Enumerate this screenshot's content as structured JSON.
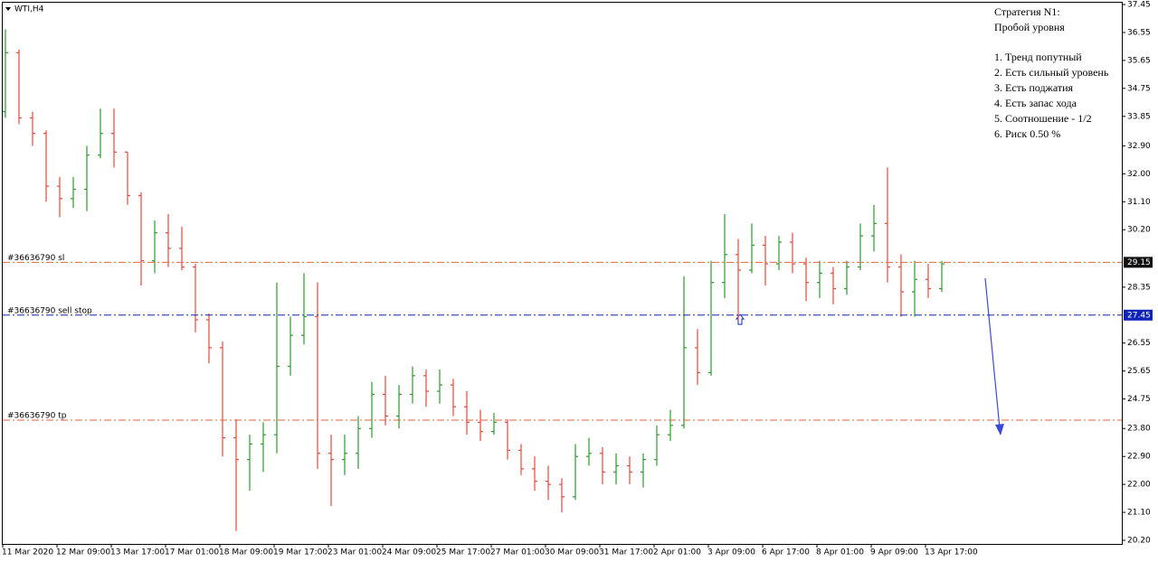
{
  "chart_data": {
    "type": "ohlc",
    "title": "WTI,H4",
    "categories": [
      "11 Mar 2020",
      null,
      null,
      null,
      "12 Mar 09:00",
      null,
      null,
      null,
      "13 Mar 17:00",
      null,
      null,
      null,
      "17 Mar 01:00",
      null,
      null,
      null,
      "18 Mar 09:00",
      null,
      null,
      null,
      "19 Mar 17:00",
      null,
      null,
      null,
      "23 Mar 01:00",
      null,
      null,
      null,
      "24 Mar 09:00",
      null,
      null,
      null,
      "25 Mar 17:00",
      null,
      null,
      null,
      "27 Mar 01:00",
      null,
      null,
      null,
      "30 Mar 09:00",
      null,
      null,
      null,
      "31 Mar 17:00",
      null,
      null,
      null,
      "2 Apr 01:00",
      null,
      null,
      null,
      "3 Apr 09:00",
      null,
      null,
      null,
      "6 Apr 17:00",
      null,
      null,
      null,
      "8 Apr 01:00",
      null,
      null,
      null,
      "9 Apr 09:00",
      null,
      null,
      null,
      "13 Apr 17:00",
      null
    ],
    "open": [
      34.0,
      35.9,
      33.8,
      33.3,
      31.6,
      31.2,
      31.5,
      32.6,
      33.3,
      32.7,
      31.3,
      29.2,
      30.1,
      29.6,
      29.0,
      27.3,
      26.4,
      23.5,
      22.8,
      23.3,
      23.6,
      25.8,
      26.8,
      27.4,
      23.0,
      22.8,
      23.0,
      23.8,
      24.9,
      24.2,
      24.9,
      25.5,
      25.0,
      25.2,
      24.5,
      24.0,
      23.7,
      24.0,
      23.1,
      22.5,
      22.1,
      22.0,
      21.6,
      22.9,
      23.0,
      22.4,
      22.6,
      22.4,
      22.8,
      23.6,
      23.9,
      26.4,
      25.6,
      28.5,
      29.4,
      28.9,
      29.7,
      29.1,
      29.8,
      29.1,
      28.5,
      28.8,
      28.3,
      29.0,
      30.0,
      30.4,
      29.0,
      28.2,
      28.6,
      28.3
    ],
    "high": [
      36.65,
      36.0,
      34.0,
      33.4,
      31.9,
      31.9,
      32.9,
      34.1,
      34.1,
      32.7,
      31.4,
      30.5,
      30.7,
      30.3,
      29.1,
      27.5,
      26.6,
      24.1,
      23.6,
      24.0,
      28.5,
      27.4,
      28.8,
      28.5,
      23.6,
      23.6,
      24.2,
      25.3,
      25.5,
      25.2,
      25.8,
      25.7,
      25.7,
      25.4,
      25.0,
      24.4,
      24.3,
      24.1,
      23.3,
      22.9,
      22.6,
      22.2,
      23.3,
      23.5,
      23.2,
      23.0,
      22.9,
      23.0,
      23.9,
      24.4,
      28.7,
      27.0,
      29.2,
      30.7,
      29.9,
      30.4,
      30.0,
      30.0,
      30.1,
      29.3,
      29.2,
      29.0,
      29.2,
      30.4,
      31.0,
      32.2,
      29.4,
      29.2,
      29.1,
      29.2
    ],
    "low": [
      33.8,
      33.6,
      32.9,
      31.1,
      30.6,
      30.9,
      30.8,
      32.5,
      32.2,
      31.0,
      28.4,
      28.8,
      29.0,
      28.9,
      26.9,
      25.9,
      22.9,
      20.5,
      21.8,
      22.4,
      23.0,
      25.5,
      26.5,
      22.5,
      21.3,
      22.3,
      22.5,
      23.5,
      23.9,
      23.8,
      24.6,
      24.5,
      24.6,
      24.2,
      23.6,
      23.4,
      23.6,
      22.8,
      22.3,
      21.8,
      21.5,
      21.1,
      21.5,
      22.6,
      22.0,
      22.0,
      22.0,
      21.9,
      22.6,
      23.4,
      23.8,
      25.2,
      25.5,
      28.0,
      27.3,
      28.8,
      28.4,
      28.9,
      28.8,
      27.9,
      28.0,
      27.8,
      28.1,
      28.9,
      29.5,
      28.5,
      27.4,
      27.4,
      28.0,
      28.2
    ],
    "close": [
      35.9,
      33.8,
      33.3,
      31.6,
      31.2,
      31.5,
      32.6,
      33.3,
      32.7,
      31.3,
      29.2,
      30.1,
      29.6,
      29.0,
      27.3,
      26.4,
      23.5,
      22.8,
      23.3,
      23.6,
      25.8,
      26.8,
      27.4,
      23.0,
      22.8,
      23.0,
      23.8,
      24.9,
      24.2,
      24.9,
      25.5,
      25.0,
      25.2,
      24.5,
      24.0,
      23.7,
      24.0,
      23.1,
      22.5,
      22.1,
      22.0,
      21.6,
      22.9,
      23.0,
      22.4,
      22.6,
      22.4,
      22.8,
      23.6,
      23.9,
      26.4,
      25.6,
      28.5,
      29.4,
      28.9,
      29.7,
      29.1,
      29.8,
      29.1,
      28.5,
      28.8,
      28.3,
      29.0,
      30.0,
      30.4,
      29.0,
      28.2,
      28.6,
      28.3,
      29.1
    ],
    "up_color": "#2e9a2e",
    "down_color": "#e8453c",
    "ylim": [
      20.2,
      37.45
    ],
    "yticks": [
      37.45,
      36.55,
      35.65,
      34.75,
      33.85,
      32.9,
      32.0,
      31.1,
      30.2,
      28.35,
      26.55,
      25.65,
      24.75,
      23.8,
      22.9,
      22.0,
      21.1,
      20.2
    ],
    "ytick_labels": [
      "37.45",
      "36.55",
      "35.65",
      "34.75",
      "33.85",
      "32.90",
      "32.00",
      "31.10",
      "30.20",
      "28.35",
      "26.55",
      "25.65",
      "24.75",
      "23.80",
      "22.90",
      "22.00",
      "21.10",
      "20.20"
    ],
    "levels": [
      {
        "name": "#36636790 sl",
        "value": 29.15,
        "value_label": "29.15",
        "color": "#e8653c",
        "label_bg": "#111111"
      },
      {
        "name": "#36636790 sell stop",
        "value": 27.45,
        "value_label": "27.45",
        "color": "#1024b8",
        "label_bg": "#1024b8"
      },
      {
        "name": "#36636790 tp",
        "value": 24.07,
        "color": "#e8653c"
      }
    ],
    "annotation": [
      "Стратегия N1:",
      "Пробой уровня",
      "1. Тренд попутный",
      "2. Есть сильный уровень",
      "3. Есть поджатия",
      "4. Есть запас хода",
      "5. Соотношение - 1/2",
      "6. Риск 0.50 %"
    ]
  }
}
